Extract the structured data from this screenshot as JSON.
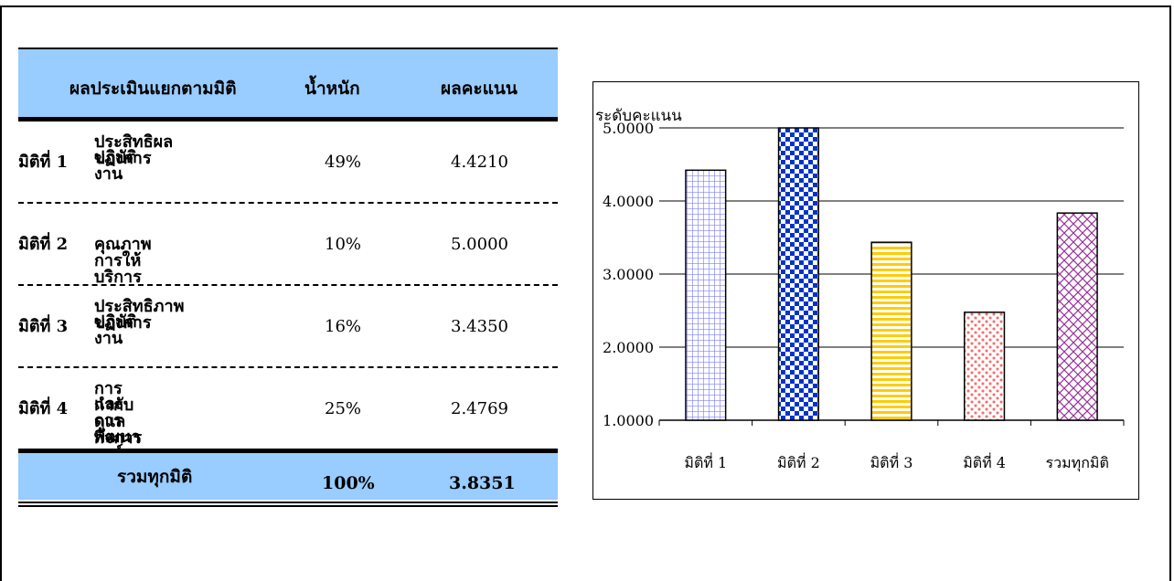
{
  "table": {
    "headers": {
      "dimension": "ผลประเมินแยกตามมิติ",
      "weight": "น้ำหนัก",
      "score": "ผลคะแนน"
    },
    "rows": [
      {
        "dimension": "มิติที่ 1",
        "name_line1": "ประสิทธิผลของการ",
        "name_line2": "ปฏิบัติงาน",
        "weight": "49%",
        "score": "4.4210"
      },
      {
        "dimension": "มิติที่ 2",
        "name_line1": "คุณภาพการให้บริการ",
        "name_line2": "",
        "weight": "10%",
        "score": "5.0000"
      },
      {
        "dimension": "มิติที่ 3",
        "name_line1": "ประสิทธิภาพของการ",
        "name_line2": "ปฏิบัติงาน",
        "weight": "16%",
        "score": "3.4350"
      },
      {
        "dimension": "มิติที่ 4",
        "name_line1": "การกำกับดูแลกิจการ",
        "name_line2": "และการพัฒนาองค์กร",
        "weight": "25%",
        "score": "2.4769"
      }
    ],
    "total": {
      "label": "รวมทุกมิติ",
      "weight": "100%",
      "score": "3.8351"
    }
  },
  "chart_data": {
    "type": "bar",
    "title": "",
    "ylabel": "ระดับคะแนน",
    "xlabel": "",
    "categories": [
      "มิติที่ 1",
      "มิติที่ 2",
      "มิติที่ 3",
      "มิติที่ 4",
      "รวมทุกมิติ"
    ],
    "values": [
      4.421,
      5.0,
      3.435,
      2.4769,
      3.8351
    ],
    "ylim": [
      1,
      5
    ],
    "yticks": [
      "1.0000",
      "2.0000",
      "3.0000",
      "4.0000",
      "5.0000"
    ],
    "grid": true,
    "legend": "none",
    "bar_patterns": [
      "grid",
      "checker",
      "horizontal-stripes",
      "dots",
      "diagonal-cross"
    ],
    "bar_colors": [
      "#8080ff",
      "#0033cc",
      "#ffcc00",
      "#ff6666",
      "#993399"
    ]
  }
}
